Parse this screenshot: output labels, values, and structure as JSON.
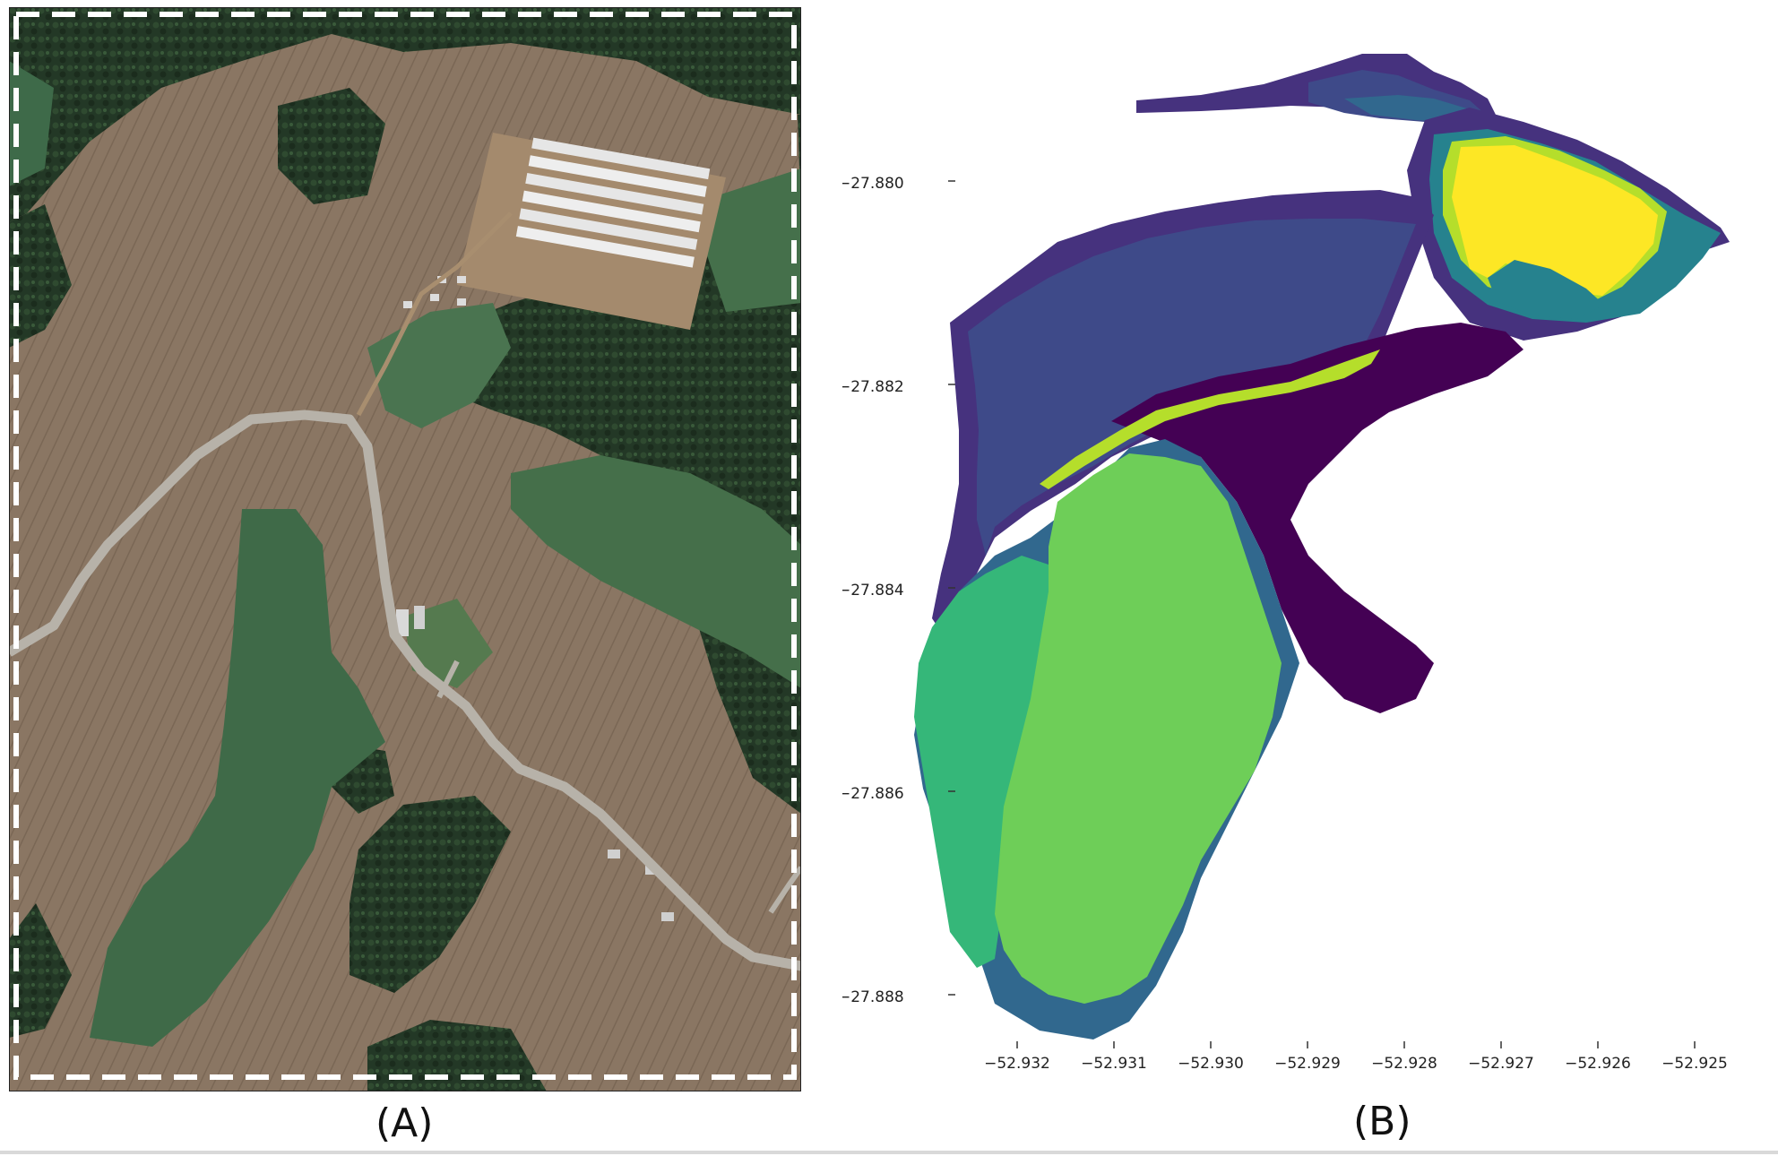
{
  "panels": {
    "left": {
      "caption": "(A)"
    },
    "right": {
      "caption": "(B)",
      "y_ticks": [
        "−27.880",
        "−27.882",
        "−27.884",
        "−27.886",
        "−27.888"
      ],
      "x_ticks": [
        "−52.932",
        "−52.931",
        "−52.930",
        "−52.929",
        "−52.928",
        "−52.927",
        "−52.926",
        "−52.925"
      ]
    }
  },
  "colors": {
    "class_dark_purple": "#440154",
    "class_purple": "#46327e",
    "class_blue": "#3e4a89",
    "class_teal": "#31688e",
    "class_cyan": "#26828e",
    "class_green_teal": "#35b779",
    "class_light_green": "#6ece58",
    "class_lime": "#b5de2b",
    "class_yellow": "#fde725",
    "dashed_border": "#ffffff",
    "road": "#b7b2a9"
  }
}
